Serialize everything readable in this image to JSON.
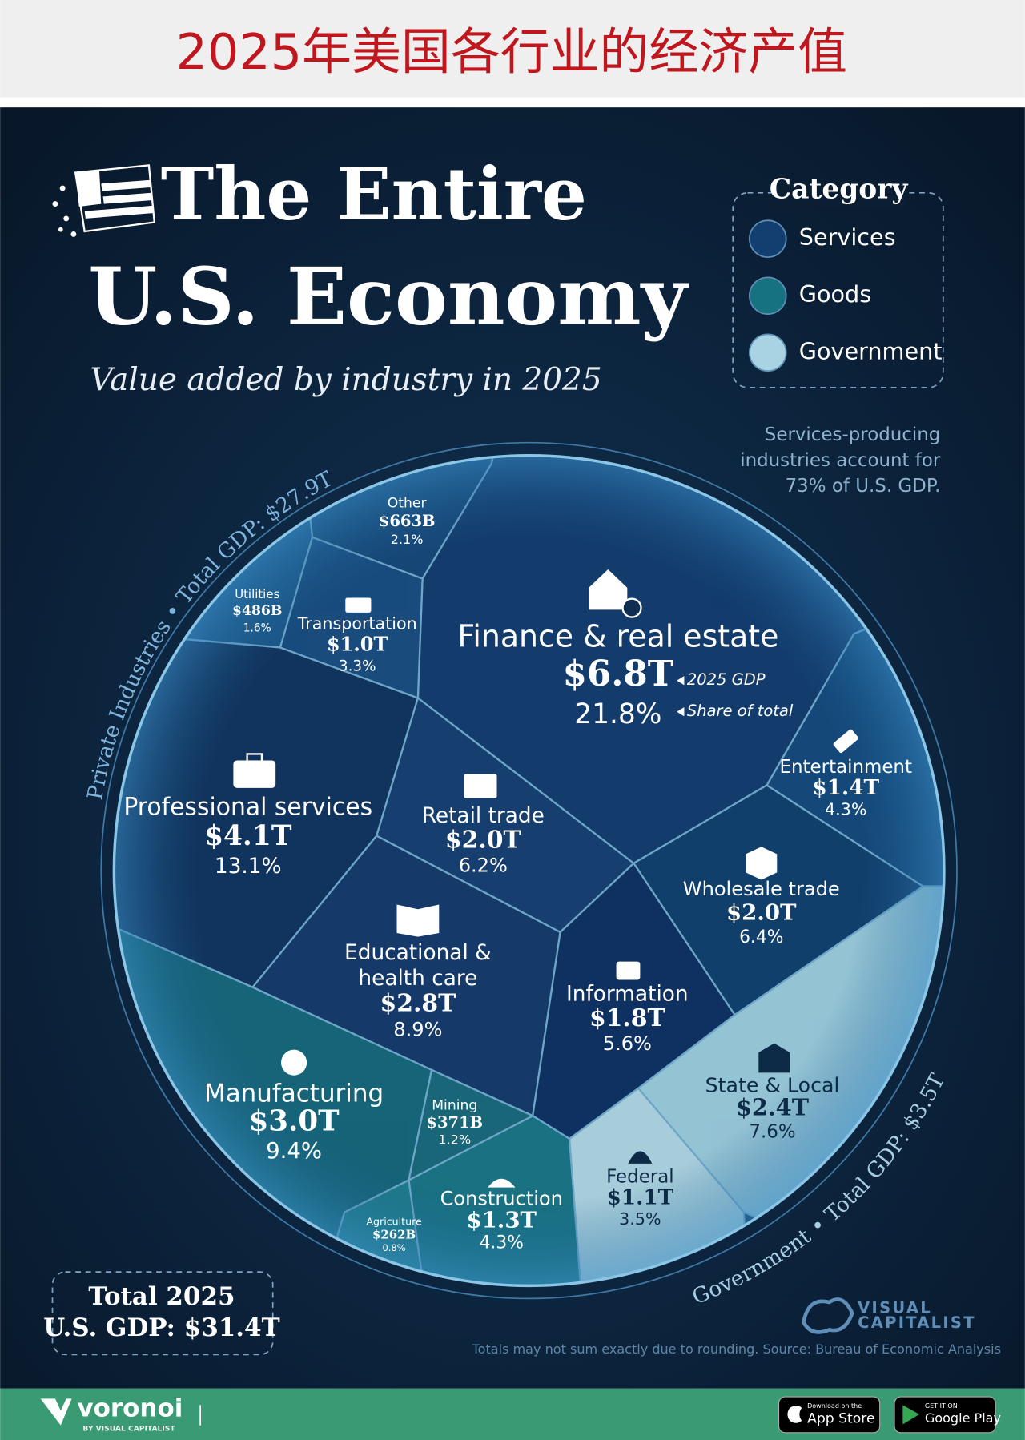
{
  "header": {
    "title": "2025年美国各行业的经济产值"
  },
  "infographic": {
    "title_line1": "The Entire",
    "title_line2": "U.S. Economy",
    "subtitle": "Value added by industry in 2025"
  },
  "legend": {
    "title": "Category",
    "items": [
      "Services",
      "Goods",
      "Government"
    ]
  },
  "note": [
    "Services-producing",
    "industries account for",
    "73% of U.S. GDP."
  ],
  "arc_labels": {
    "private": "Private Industries • Total GDP: $27.9T",
    "government": "Government • Total GDP: $3.5T"
  },
  "annotations": {
    "gdp": "2025 GDP",
    "share": "Share of total"
  },
  "sectors": [
    {
      "name": [
        "Finance & real estate"
      ],
      "value": "$6.8T",
      "share": "21.8%"
    },
    {
      "name": [
        "Professional services"
      ],
      "value": "$4.1T",
      "share": "13.1%"
    },
    {
      "name": [
        "Educational &",
        "health care"
      ],
      "value": "$2.8T",
      "share": "8.9%"
    },
    {
      "name": [
        "Manufacturing"
      ],
      "value": "$3.0T",
      "share": "9.4%"
    },
    {
      "name": [
        "State & Local"
      ],
      "value": "$2.4T",
      "share": "7.6%"
    },
    {
      "name": [
        "Retail trade"
      ],
      "value": "$2.0T",
      "share": "6.2%"
    },
    {
      "name": [
        "Wholesale trade"
      ],
      "value": "$2.0T",
      "share": "6.4%"
    },
    {
      "name": [
        "Information"
      ],
      "value": "$1.8T",
      "share": "5.6%"
    },
    {
      "name": [
        "Entertainment"
      ],
      "value": "$1.4T",
      "share": "4.3%"
    },
    {
      "name": [
        "Construction"
      ],
      "value": "$1.3T",
      "share": "4.3%"
    },
    {
      "name": [
        "Federal"
      ],
      "value": "$1.1T",
      "share": "3.5%"
    },
    {
      "name": [
        "Transportation"
      ],
      "value": "$1.0T",
      "share": "3.3%"
    },
    {
      "name": [
        "Other"
      ],
      "value": "$663B",
      "share": "2.1%"
    },
    {
      "name": [
        "Utilities"
      ],
      "value": "$486B",
      "share": "1.6%"
    },
    {
      "name": [
        "Mining"
      ],
      "value": "$371B",
      "share": "1.2%"
    },
    {
      "name": [
        "Agriculture"
      ],
      "value": "$262B",
      "share": "0.8%"
    }
  ],
  "total": [
    "Total 2025",
    "U.S. GDP: $31.4T"
  ],
  "logo": [
    "VISUAL",
    "CAPITALIST"
  ],
  "footnote": "Totals may not sum exactly due to rounding. Source: Bureau of Economic Analysis",
  "footer": {
    "brand": "voronoi",
    "by": "BY VISUAL CAPITALIST",
    "app_store": [
      "Download on the",
      "App Store"
    ],
    "google_play": [
      "GET IT ON",
      "Google Play"
    ]
  }
}
